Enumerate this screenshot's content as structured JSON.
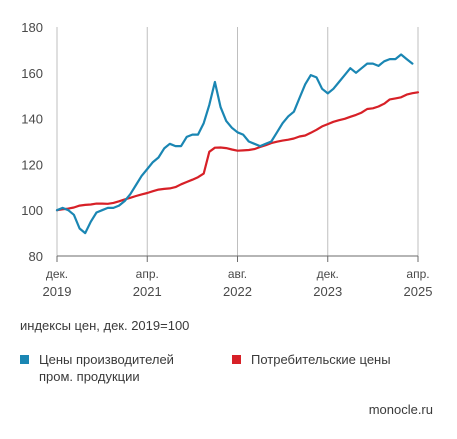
{
  "chart_data": {
    "type": "line",
    "yticks": [
      80,
      100,
      120,
      140,
      160,
      180
    ],
    "ylim": [
      80,
      180
    ],
    "xticks": [
      {
        "month": "дек.",
        "year": "2019"
      },
      {
        "month": "апр.",
        "year": "2021"
      },
      {
        "month": "авг.",
        "year": "2022"
      },
      {
        "month": "дек.",
        "year": "2023"
      },
      {
        "month": "апр.",
        "year": "2025"
      }
    ],
    "xlim": [
      "2019-12",
      "2025-04"
    ],
    "grid": "vertical",
    "caption": "индексы цен, дек. 2019=100",
    "legend_position": "bottom",
    "series": [
      {
        "name": "Цены производителей\nпром. продукции",
        "color": "#1a86b3",
        "points": [
          [
            "2019-12",
            100
          ],
          [
            "2020-01",
            101
          ],
          [
            "2020-02",
            100
          ],
          [
            "2020-03",
            98
          ],
          [
            "2020-04",
            92
          ],
          [
            "2020-05",
            90
          ],
          [
            "2020-06",
            95
          ],
          [
            "2020-07",
            99
          ],
          [
            "2020-08",
            100
          ],
          [
            "2020-09",
            101
          ],
          [
            "2020-10",
            101
          ],
          [
            "2020-11",
            102
          ],
          [
            "2020-12",
            104
          ],
          [
            "2021-01",
            107
          ],
          [
            "2021-02",
            111
          ],
          [
            "2021-03",
            115
          ],
          [
            "2021-04",
            118
          ],
          [
            "2021-05",
            121
          ],
          [
            "2021-06",
            123
          ],
          [
            "2021-07",
            127
          ],
          [
            "2021-08",
            129
          ],
          [
            "2021-09",
            128
          ],
          [
            "2021-10",
            128
          ],
          [
            "2021-11",
            132
          ],
          [
            "2021-12",
            133
          ],
          [
            "2022-01",
            133
          ],
          [
            "2022-02",
            138
          ],
          [
            "2022-03",
            146
          ],
          [
            "2022-04",
            156
          ],
          [
            "2022-05",
            145
          ],
          [
            "2022-06",
            139
          ],
          [
            "2022-07",
            136
          ],
          [
            "2022-08",
            134
          ],
          [
            "2022-09",
            133
          ],
          [
            "2022-10",
            130
          ],
          [
            "2022-11",
            129
          ],
          [
            "2022-12",
            128
          ],
          [
            "2023-01",
            129
          ],
          [
            "2023-02",
            130
          ],
          [
            "2023-03",
            134
          ],
          [
            "2023-04",
            138
          ],
          [
            "2023-05",
            141
          ],
          [
            "2023-06",
            143
          ],
          [
            "2023-07",
            149
          ],
          [
            "2023-08",
            155
          ],
          [
            "2023-09",
            159
          ],
          [
            "2023-10",
            158
          ],
          [
            "2023-11",
            153
          ],
          [
            "2023-12",
            151
          ],
          [
            "2024-01",
            153
          ],
          [
            "2024-02",
            156
          ],
          [
            "2024-03",
            159
          ],
          [
            "2024-04",
            162
          ],
          [
            "2024-05",
            160
          ],
          [
            "2024-06",
            162
          ],
          [
            "2024-07",
            164
          ],
          [
            "2024-08",
            164
          ],
          [
            "2024-09",
            163
          ],
          [
            "2024-10",
            165
          ],
          [
            "2024-11",
            166
          ],
          [
            "2024-12",
            166
          ],
          [
            "2025-01",
            168
          ],
          [
            "2025-02",
            166
          ],
          [
            "2025-03",
            164
          ]
        ]
      },
      {
        "name": "Потребительские цены",
        "color": "#d72027",
        "points": [
          [
            "2019-12",
            100
          ],
          [
            "2020-01",
            100.4
          ],
          [
            "2020-02",
            100.7
          ],
          [
            "2020-03",
            101.2
          ],
          [
            "2020-04",
            102.0
          ],
          [
            "2020-05",
            102.3
          ],
          [
            "2020-06",
            102.5
          ],
          [
            "2020-07",
            102.9
          ],
          [
            "2020-08",
            102.9
          ],
          [
            "2020-09",
            102.8
          ],
          [
            "2020-10",
            103.2
          ],
          [
            "2020-11",
            103.9
          ],
          [
            "2020-12",
            104.7
          ],
          [
            "2021-01",
            105.4
          ],
          [
            "2021-02",
            106.2
          ],
          [
            "2021-03",
            106.9
          ],
          [
            "2021-04",
            107.5
          ],
          [
            "2021-05",
            108.3
          ],
          [
            "2021-06",
            109.0
          ],
          [
            "2021-07",
            109.3
          ],
          [
            "2021-08",
            109.5
          ],
          [
            "2021-09",
            110.1
          ],
          [
            "2021-10",
            111.3
          ],
          [
            "2021-11",
            112.3
          ],
          [
            "2021-12",
            113.3
          ],
          [
            "2022-01",
            114.4
          ],
          [
            "2022-02",
            116.0
          ],
          [
            "2022-03",
            125.5
          ],
          [
            "2022-04",
            127.3
          ],
          [
            "2022-05",
            127.4
          ],
          [
            "2022-06",
            127.1
          ],
          [
            "2022-07",
            126.5
          ],
          [
            "2022-08",
            126.0
          ],
          [
            "2022-09",
            126.1
          ],
          [
            "2022-10",
            126.3
          ],
          [
            "2022-11",
            126.7
          ],
          [
            "2022-12",
            127.6
          ],
          [
            "2023-01",
            128.4
          ],
          [
            "2023-02",
            129.3
          ],
          [
            "2023-03",
            129.9
          ],
          [
            "2023-04",
            130.4
          ],
          [
            "2023-05",
            130.8
          ],
          [
            "2023-06",
            131.3
          ],
          [
            "2023-07",
            132.2
          ],
          [
            "2023-08",
            132.6
          ],
          [
            "2023-09",
            133.8
          ],
          [
            "2023-10",
            135.1
          ],
          [
            "2023-11",
            136.6
          ],
          [
            "2023-12",
            137.6
          ],
          [
            "2024-01",
            138.6
          ],
          [
            "2024-02",
            139.3
          ],
          [
            "2024-03",
            139.9
          ],
          [
            "2024-04",
            140.8
          ],
          [
            "2024-05",
            141.6
          ],
          [
            "2024-06",
            142.6
          ],
          [
            "2024-07",
            144.2
          ],
          [
            "2024-08",
            144.5
          ],
          [
            "2024-09",
            145.3
          ],
          [
            "2024-10",
            146.5
          ],
          [
            "2024-11",
            148.4
          ],
          [
            "2024-12",
            148.8
          ],
          [
            "2025-01",
            149.3
          ],
          [
            "2025-02",
            150.5
          ],
          [
            "2025-03",
            151.1
          ],
          [
            "2025-04",
            151.5
          ]
        ]
      }
    ]
  },
  "source": "monocle.ru"
}
